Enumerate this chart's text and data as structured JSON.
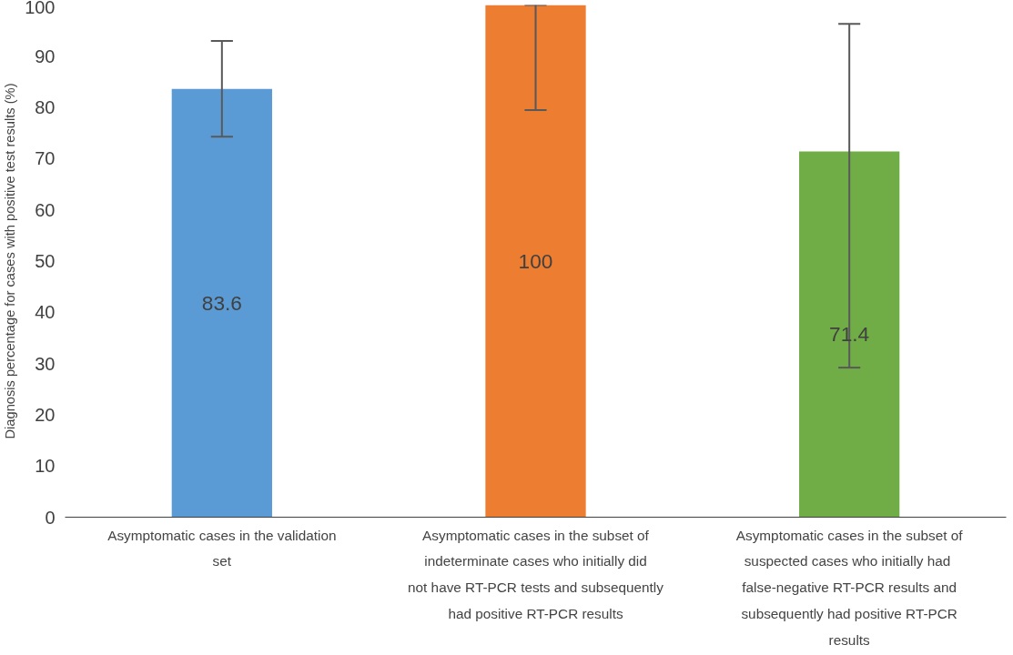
{
  "chart_data": {
    "type": "bar",
    "ylabel": "Diagnosis percentage for cases with positive test results (%)",
    "categories": [
      "Asymptomatic cases in the validation set",
      "Asymptomatic cases in the subset of indeterminate cases who initially did not have RT-PCR tests and subsequently had positive RT-PCR results",
      "Asymptomatic cases in the subset of suspected  cases who initially had false-negative RT-PCR results and subsequently had positive RT-PCR results"
    ],
    "values": [
      83.6,
      100,
      71.4
    ],
    "colors": [
      "#5b9bd5",
      "#ed7d31",
      "#70ad47"
    ],
    "errors": [
      [
        74.3,
        93.0
      ],
      [
        79.5,
        100
      ],
      [
        29.2,
        96.3
      ]
    ],
    "ylim": [
      0,
      100
    ],
    "yticks": [
      0,
      10,
      20,
      30,
      40,
      50,
      60,
      70,
      80,
      90,
      100
    ],
    "data_labels": true,
    "grid": false
  }
}
